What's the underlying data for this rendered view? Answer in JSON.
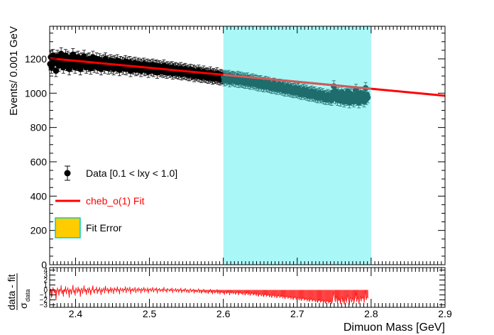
{
  "chart_data": [
    {
      "type": "scatter",
      "panel": "main",
      "xlabel": "Dimuon Mass [GeV]",
      "ylabel": "Events/ 0.001 GeV",
      "xlim": [
        2.365,
        2.9
      ],
      "ylim": [
        0,
        1390
      ],
      "x_ticks": [
        2.4,
        2.5,
        2.6,
        2.7,
        2.8,
        2.9
      ],
      "x_tick_labels": [
        "2.4",
        "2.5",
        "2.6",
        "2.7",
        "2.8",
        "2.9"
      ],
      "y_ticks": [
        0,
        200,
        400,
        600,
        800,
        1000,
        1200
      ],
      "y_tick_labels": [
        "0",
        "200",
        "400",
        "600",
        "800",
        "1000",
        "1200"
      ],
      "highlight_band": {
        "x_start": 2.6,
        "x_end": 2.8,
        "color": "#aaf7f7"
      },
      "data_points": {
        "x_start": 2.3655,
        "x_step": 0.001,
        "values": [
          1170,
          1210,
          1150,
          1165,
          1220,
          1195,
          1180,
          1200,
          1130,
          1175,
          1215,
          1190,
          1160,
          1205,
          1185,
          1230,
          1170,
          1195,
          1150,
          1200,
          1180,
          1220,
          1165,
          1190,
          1210,
          1175,
          1140,
          1200,
          1185,
          1160,
          1195,
          1225,
          1170,
          1180,
          1150,
          1205,
          1190,
          1165,
          1210,
          1175,
          1195,
          1140,
          1185,
          1200,
          1160,
          1180,
          1215,
          1170,
          1190,
          1150,
          1175,
          1195,
          1160,
          1200,
          1180,
          1145,
          1170,
          1190,
          1210,
          1165,
          1155,
          1185,
          1175,
          1200,
          1150,
          1180,
          1165,
          1195,
          1170,
          1140,
          1185,
          1160,
          1175,
          1190,
          1150,
          1200,
          1170,
          1165,
          1185,
          1145,
          1175,
          1160,
          1190,
          1150,
          1180,
          1170,
          1140,
          1185,
          1165,
          1175,
          1150,
          1190,
          1160,
          1170,
          1135,
          1180,
          1165,
          1155,
          1175,
          1145,
          1170,
          1160,
          1185,
          1140,
          1165,
          1175,
          1150,
          1160,
          1180,
          1130,
          1165,
          1150,
          1170,
          1145,
          1160,
          1175,
          1135,
          1155,
          1165,
          1140,
          1170,
          1150,
          1160,
          1130,
          1165,
          1145,
          1155,
          1170,
          1135,
          1160,
          1150,
          1140,
          1165,
          1125,
          1155,
          1145,
          1160,
          1135,
          1150,
          1165,
          1130,
          1145,
          1155,
          1140,
          1160,
          1120,
          1150,
          1140,
          1155,
          1130,
          1145,
          1135,
          1150,
          1125,
          1160,
          1140,
          1130,
          1145,
          1120,
          1150,
          1135,
          1140,
          1125,
          1145,
          1130,
          1150,
          1115,
          1140,
          1135,
          1125,
          1145,
          1120,
          1130,
          1140,
          1115,
          1135,
          1125,
          1145,
          1110,
          1130,
          1120,
          1135,
          1115,
          1140,
          1125,
          1110,
          1130,
          1120,
          1105,
          1125,
          1135,
          1110,
          1120,
          1115,
          1130,
          1100,
          1125,
          1110,
          1120,
          1105,
          1115,
          1130,
          1100,
          1120,
          1110,
          1095,
          1115,
          1105,
          1125,
          1100,
          1110,
          1095,
          1115,
          1105,
          1090,
          1110,
          1100,
          1120,
          1095,
          1105,
          1085,
          1110,
          1100,
          1090,
          1105,
          1095,
          1115,
          1085,
          1100,
          1095,
          1080,
          1105,
          1090,
          1100,
          1085,
          1095,
          1075,
          1100,
          1090,
          1080,
          1095,
          1085,
          1100,
          1070,
          1090,
          1085,
          1080,
          1095,
          1075,
          1090,
          1085,
          1070,
          1085,
          1080,
          1095,
          1065,
          1085,
          1075,
          1090,
          1070,
          1080,
          1065,
          1085,
          1075,
          1060,
          1080,
          1070,
          1085,
          1060,
          1075,
          1070,
          1055,
          1075,
          1065,
          1080,
          1055,
          1070,
          1060,
          1075,
          1050,
          1070,
          1060,
          1045,
          1065,
          1055,
          1070,
          1045,
          1060,
          1055,
          1040,
          1060,
          1050,
          1065,
          1040,
          1055,
          1045,
          1060,
          1035,
          1050,
          1045,
          1030,
          1050,
          1040,
          1055,
          1030,
          1045,
          1040,
          1025,
          1045,
          1035,
          1050,
          1025,
          1040,
          1030,
          1045,
          1020,
          1035,
          1030,
          1015,
          1035,
          1025,
          1040,
          1015,
          1030,
          1020,
          1035,
          1010,
          1025,
          1020,
          1005,
          1025,
          1015,
          1030,
          1005,
          1020,
          1010,
          1025,
          1000,
          1015,
          1010,
          995,
          1015,
          1005,
          1020,
          995,
          1010,
          1000,
          1015,
          990,
          1005,
          1000,
          985,
          1005,
          995,
          1010,
          985,
          1000,
          990,
          1005,
          980,
          995,
          990,
          975,
          995,
          985,
          1000,
          975,
          990,
          980,
          995,
          970,
          985,
          980,
          965,
          985,
          975,
          990,
          965,
          980,
          970,
          985,
          960,
          975,
          1005,
          1040,
          995,
          970,
          1010,
          985,
          960,
          1000,
          975,
          990,
          955,
          980,
          1005,
          965,
          990,
          950,
          975,
          995,
          960,
          985,
          1010,
          970,
          945,
          980,
          995,
          960,
          975,
          990,
          950,
          970,
          985,
          1020,
          960,
          975,
          990,
          945,
          970,
          1000,
          960,
          985,
          975,
          995,
          950,
          980,
          1030,
          965,
          990,
          975
        ]
      },
      "error_bar_sigma": "sqrt(N)",
      "fit_line": {
        "x": [
          2.365,
          2.9
        ],
        "y": [
          1203,
          985
        ]
      },
      "legend": [
        {
          "label": "Data [0.1 < lxy < 1.0]",
          "color": "#000000",
          "marker": "circle"
        },
        {
          "label": "cheb_o(1) Fit",
          "color": "#ff0000",
          "marker": "line"
        },
        {
          "label": "Fit Error",
          "color": "#ffcc00",
          "marker": "box",
          "edge": "#00cccc"
        }
      ],
      "legend_location": "left-middle"
    },
    {
      "type": "bar",
      "panel": "residual",
      "xlabel": "Dimuon Mass [GeV]",
      "ylabel_main": "data - fit",
      "ylabel_sub": "σ",
      "ylabel_sub_subscript": "data",
      "ylim": [
        -3.5,
        4.5
      ],
      "y_ticks": [
        -3,
        -2,
        -1,
        0,
        1,
        2,
        3,
        4
      ],
      "y_tick_labels": [
        "−3",
        "−2",
        "−1",
        "0",
        "1",
        "2",
        "3",
        "4"
      ],
      "color": "#ff0000",
      "values_note": "residuals computed as (data - fit)/sqrt(data)"
    }
  ],
  "colors": {
    "data": "#000000",
    "fit": "#ff0000",
    "band": "#aaf7f7",
    "fit_error_fill": "#ffcc00",
    "fit_error_edge": "#00cccc"
  }
}
